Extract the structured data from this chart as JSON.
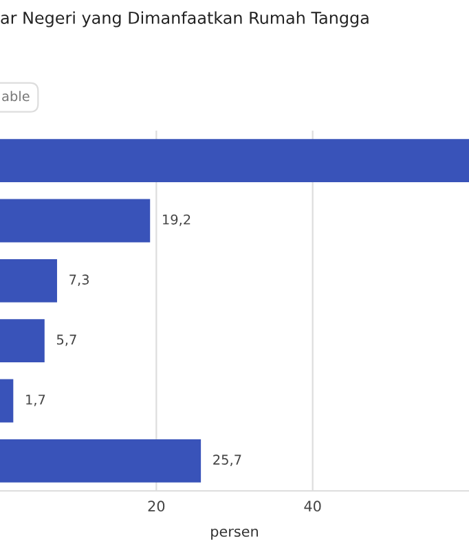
{
  "chart_data": {
    "type": "bar",
    "orientation": "horizontal",
    "title": "ar Negeri yang Dimanfaatkan Rumah Tangga",
    "xlabel": "persen",
    "categories": [
      null,
      null,
      null,
      null,
      null,
      null
    ],
    "values": [
      60,
      19.2,
      7.3,
      5.7,
      1.7,
      25.7
    ],
    "value_labels": [
      null,
      "19,2",
      "7,3",
      "5,7",
      "1,7",
      "25,7"
    ],
    "color": "#3953b9",
    "xlim": [
      0,
      60
    ],
    "xticks": [
      20,
      40
    ],
    "grid": "x",
    "annotations": [
      "able"
    ]
  }
}
